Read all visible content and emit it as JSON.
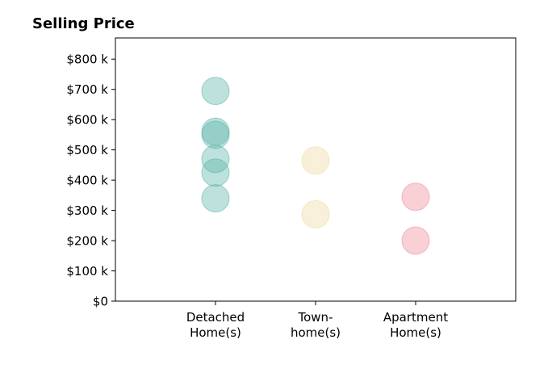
{
  "chart_data": {
    "type": "scatter",
    "title": "Selling Price",
    "xlabel": "",
    "ylabel": "",
    "ylim": [
      0,
      870000
    ],
    "y_ticks": [
      {
        "value": 0,
        "label": "$0"
      },
      {
        "value": 100000,
        "label": "$100 k"
      },
      {
        "value": 200000,
        "label": "$200 k"
      },
      {
        "value": 300000,
        "label": "$300 k"
      },
      {
        "value": 400000,
        "label": "$400 k"
      },
      {
        "value": 500000,
        "label": "$500 k"
      },
      {
        "value": 600000,
        "label": "$600 k"
      },
      {
        "value": 700000,
        "label": "$700 k"
      },
      {
        "value": 800000,
        "label": "$800 k"
      }
    ],
    "categories": [
      {
        "label_lines": [
          "Detached",
          "Home(s)"
        ]
      },
      {
        "label_lines": [
          "Town-",
          "home(s)"
        ]
      },
      {
        "label_lines": [
          "Apartment",
          "Home(s)"
        ]
      }
    ],
    "grid": false,
    "legend": "none",
    "series": [
      {
        "category_index": 0,
        "color": "#5bb5a8",
        "values": [
          695000,
          560000,
          550000,
          470000,
          425000,
          340000
        ]
      },
      {
        "category_index": 1,
        "color": "#f0d9a0",
        "values": [
          465000,
          287000
        ]
      },
      {
        "category_index": 2,
        "color": "#f08a95",
        "values": [
          345000,
          200000
        ]
      }
    ]
  }
}
